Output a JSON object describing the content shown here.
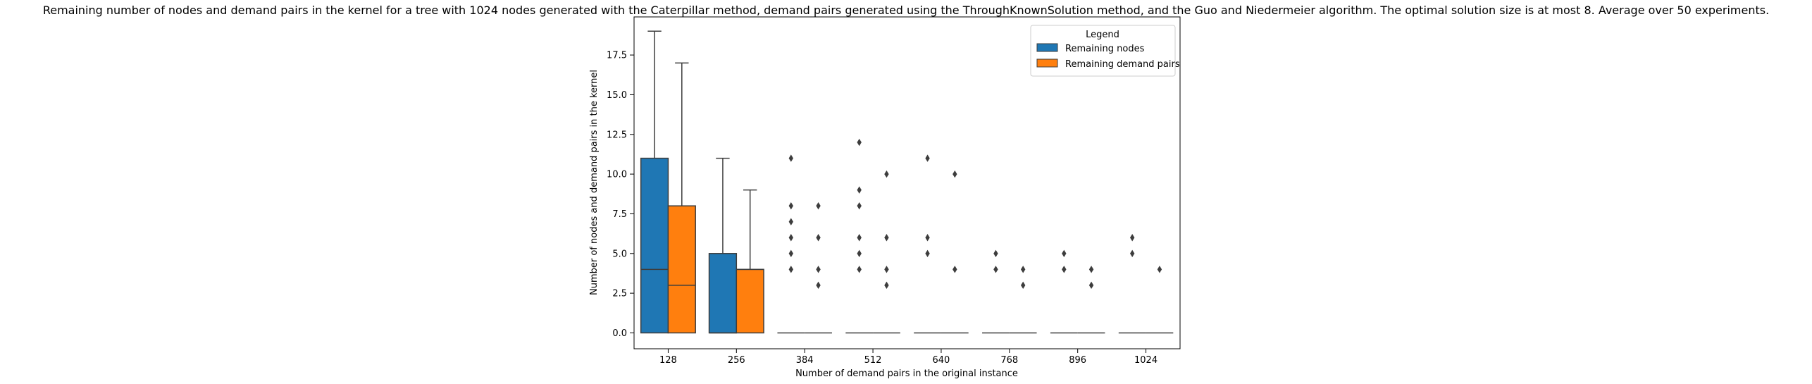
{
  "chart_data": {
    "type": "box",
    "title": "Remaining number of nodes and demand pairs in the kernel for a tree with 1024 nodes generated with the Caterpillar method, demand pairs generated using the ThroughKnownSolution method, and the Guo and Niedermeier algorithm. The optimal solution size is at most 8. Average over 50 experiments.",
    "xlabel": "Number of demand pairs in the original instance",
    "ylabel": "Number of nodes and demand pairs in the kernel",
    "categories": [
      "128",
      "256",
      "384",
      "512",
      "640",
      "768",
      "896",
      "1024"
    ],
    "ylim": [
      -1.0,
      19.9
    ],
    "yticks": [
      0.0,
      2.5,
      5.0,
      7.5,
      10.0,
      12.5,
      15.0,
      17.5
    ],
    "ytick_labels": [
      "0.0",
      "2.5",
      "5.0",
      "7.5",
      "10.0",
      "12.5",
      "15.0",
      "17.5"
    ],
    "legend": {
      "title": "Legend",
      "placement": "top-right"
    },
    "colors": {
      "Remaining nodes": "#1f77b4",
      "Remaining demand pairs": "#ff7f0e",
      "edge": "#3d3d3d"
    },
    "series": [
      {
        "name": "Remaining nodes",
        "boxes": [
          {
            "q1": 0,
            "median": 4,
            "q3": 11,
            "whisker_low": 0,
            "whisker_high": 19,
            "fliers": []
          },
          {
            "q1": 0,
            "median": 0,
            "q3": 5,
            "whisker_low": 0,
            "whisker_high": 11,
            "fliers": []
          },
          {
            "q1": 0,
            "median": 0,
            "q3": 0,
            "whisker_low": 0,
            "whisker_high": 0,
            "fliers": [
              4,
              5,
              6,
              7,
              8,
              11
            ]
          },
          {
            "q1": 0,
            "median": 0,
            "q3": 0,
            "whisker_low": 0,
            "whisker_high": 0,
            "fliers": [
              4,
              5,
              6,
              8,
              9,
              12
            ]
          },
          {
            "q1": 0,
            "median": 0,
            "q3": 0,
            "whisker_low": 0,
            "whisker_high": 0,
            "fliers": [
              5,
              6,
              11
            ]
          },
          {
            "q1": 0,
            "median": 0,
            "q3": 0,
            "whisker_low": 0,
            "whisker_high": 0,
            "fliers": [
              4,
              5
            ]
          },
          {
            "q1": 0,
            "median": 0,
            "q3": 0,
            "whisker_low": 0,
            "whisker_high": 0,
            "fliers": [
              4,
              5
            ]
          },
          {
            "q1": 0,
            "median": 0,
            "q3": 0,
            "whisker_low": 0,
            "whisker_high": 0,
            "fliers": [
              5,
              6
            ]
          }
        ]
      },
      {
        "name": "Remaining demand pairs",
        "boxes": [
          {
            "q1": 0,
            "median": 3,
            "q3": 8,
            "whisker_low": 0,
            "whisker_high": 17,
            "fliers": []
          },
          {
            "q1": 0,
            "median": 4,
            "q3": 4,
            "whisker_low": 0,
            "whisker_high": 9,
            "fliers": []
          },
          {
            "q1": 0,
            "median": 0,
            "q3": 0,
            "whisker_low": 0,
            "whisker_high": 0,
            "fliers": [
              3,
              4,
              6,
              8
            ]
          },
          {
            "q1": 0,
            "median": 0,
            "q3": 0,
            "whisker_low": 0,
            "whisker_high": 0,
            "fliers": [
              3,
              4,
              6,
              10
            ]
          },
          {
            "q1": 0,
            "median": 0,
            "q3": 0,
            "whisker_low": 0,
            "whisker_high": 0,
            "fliers": [
              4,
              10
            ]
          },
          {
            "q1": 0,
            "median": 0,
            "q3": 0,
            "whisker_low": 0,
            "whisker_high": 0,
            "fliers": [
              3,
              4
            ]
          },
          {
            "q1": 0,
            "median": 0,
            "q3": 0,
            "whisker_low": 0,
            "whisker_high": 0,
            "fliers": [
              3,
              4
            ]
          },
          {
            "q1": 0,
            "median": 0,
            "q3": 0,
            "whisker_low": 0,
            "whisker_high": 0,
            "fliers": [
              4
            ]
          }
        ]
      }
    ]
  }
}
